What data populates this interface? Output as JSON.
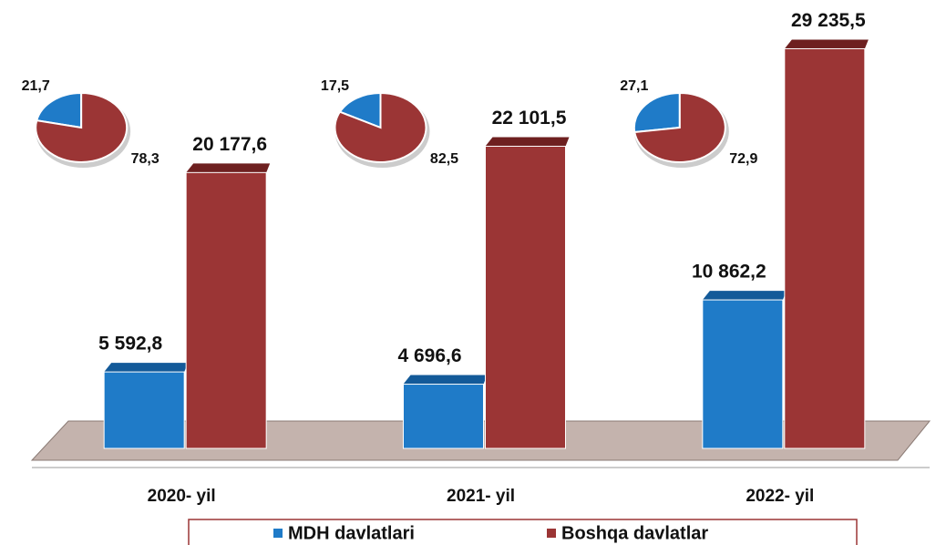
{
  "chart_data": [
    {
      "type": "bar",
      "categories": [
        "2020- yil",
        "2021- yil",
        "2022- yil"
      ],
      "series": [
        {
          "name": "MDH davlatlari",
          "color": "#1f7bc8",
          "values": [
            5592.8,
            4696.6,
            10862.2
          ],
          "value_labels": [
            "5 592,8",
            "4 696,6",
            "10 862,2"
          ]
        },
        {
          "name": "Boshqa davlatlar",
          "color": "#9b3535",
          "values": [
            20177.6,
            22101.5,
            29235.5
          ],
          "value_labels": [
            "20 177,6",
            "22 101,5",
            "29 235,5"
          ]
        }
      ],
      "ylim": [
        0,
        30000
      ]
    },
    {
      "type": "pie",
      "values": [
        21.7,
        78.3
      ],
      "value_labels": [
        "21,7",
        "78,3"
      ],
      "colors": [
        "#1f7bc8",
        "#9b3535"
      ]
    },
    {
      "type": "pie",
      "values": [
        17.5,
        82.5
      ],
      "value_labels": [
        "17,5",
        "82,5"
      ],
      "colors": [
        "#1f7bc8",
        "#9b3535"
      ]
    },
    {
      "type": "pie",
      "values": [
        27.1,
        72.9
      ],
      "value_labels": [
        "27,1",
        "72,9"
      ],
      "colors": [
        "#1f7bc8",
        "#9b3535"
      ]
    }
  ]
}
